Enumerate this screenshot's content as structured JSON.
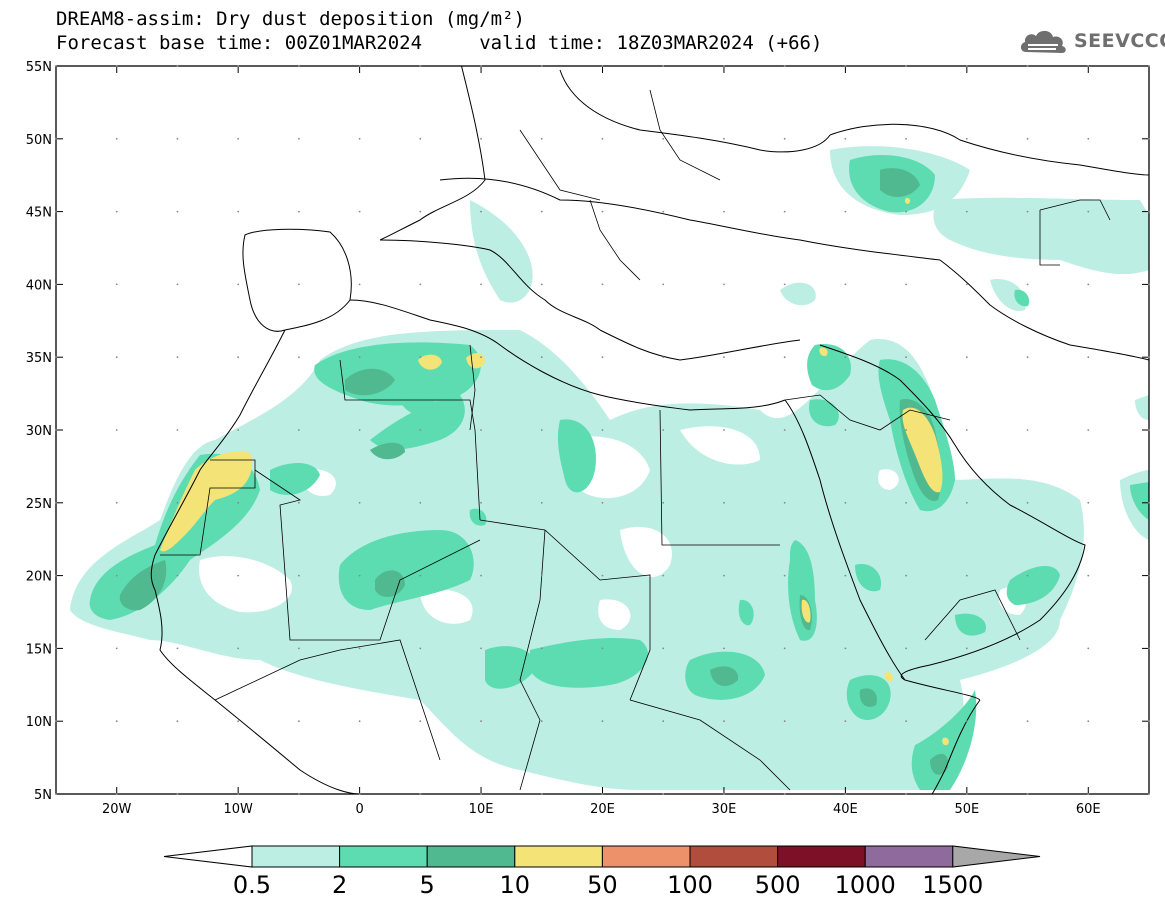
{
  "title": {
    "line1": "DREAM8-assim: Dry dust deposition (mg/m²)",
    "line2": "Forecast base time: 00Z01MAR2024     valid time: 18Z03MAR2024 (+66)"
  },
  "logo": {
    "text": "SEEVCCC",
    "icon": "cloud-logo-icon"
  },
  "map": {
    "lat_labels": [
      "55N",
      "50N",
      "45N",
      "40N",
      "35N",
      "30N",
      "25N",
      "20N",
      "15N",
      "10N",
      "5N"
    ],
    "lat_values": [
      55,
      50,
      45,
      40,
      35,
      30,
      25,
      20,
      15,
      10,
      5
    ],
    "lon_labels": [
      "20W",
      "10W",
      "0",
      "10E",
      "20E",
      "30E",
      "40E",
      "50E",
      "60E"
    ],
    "lon_values": [
      -20,
      -10,
      0,
      10,
      20,
      30,
      40,
      50,
      60
    ],
    "lon_range": [
      -25,
      65
    ],
    "lat_range": [
      5,
      55
    ],
    "colors": {
      "c1": "#bdeee4",
      "c2": "#5ddcb2",
      "c3": "#50b98f",
      "c4": "#f4e478",
      "border": "#000000"
    }
  },
  "colorbar": {
    "labels": [
      "0.5",
      "2",
      "5",
      "10",
      "50",
      "100",
      "500",
      "1000",
      "1500"
    ],
    "colors": [
      "#bdeee4",
      "#5ddcb2",
      "#50b98f",
      "#f4e478",
      "#ec916a",
      "#b04d3d",
      "#7d0f26",
      "#8e6b9c"
    ],
    "under_color": "#ffffff",
    "over_color": "#a8a8a8"
  }
}
